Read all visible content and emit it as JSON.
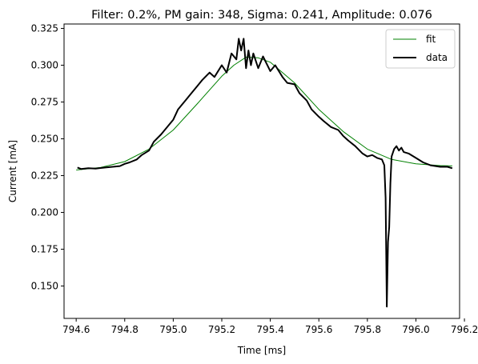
{
  "chart_data": {
    "type": "line",
    "title": "Filter: 0.2%, PM gain: 348, Sigma: 0.241, Amplitude: 0.076",
    "xlabel": "Time [ms]",
    "ylabel": "Current [mA]",
    "xlim": [
      794.55,
      796.18
    ],
    "ylim": [
      0.128,
      0.328
    ],
    "xticks": [
      794.6,
      794.8,
      795.0,
      795.2,
      795.4,
      795.6,
      795.8,
      796.0,
      796.2
    ],
    "xtick_labels": [
      "794.6",
      "794.8",
      "795.0",
      "795.2",
      "795.4",
      "795.6",
      "795.8",
      "796.0",
      "796.2"
    ],
    "yticks": [
      0.15,
      0.175,
      0.2,
      0.225,
      0.25,
      0.275,
      0.3,
      0.325
    ],
    "ytick_labels": [
      "0.150",
      "0.175",
      "0.200",
      "0.225",
      "0.250",
      "0.275",
      "0.300",
      "0.325"
    ],
    "grid": false,
    "legend_position": "top-right",
    "series": [
      {
        "name": "fit",
        "color": "#008000",
        "style": "thin-line",
        "x": [
          794.6,
          794.7,
          794.8,
          794.9,
          795.0,
          795.1,
          795.2,
          795.25,
          795.3,
          795.35,
          795.4,
          795.5,
          795.6,
          795.7,
          795.8,
          795.9,
          796.0,
          796.1,
          796.15
        ],
        "y": [
          0.2288,
          0.2305,
          0.2345,
          0.243,
          0.256,
          0.274,
          0.2925,
          0.3,
          0.3055,
          0.305,
          0.302,
          0.288,
          0.27,
          0.255,
          0.243,
          0.236,
          0.233,
          0.2318,
          0.2316
        ]
      },
      {
        "name": "data",
        "color": "#000000",
        "style": "thick-line",
        "x": [
          794.605,
          794.62,
          794.65,
          794.68,
          794.7,
          794.72,
          794.75,
          794.78,
          794.8,
          794.82,
          794.85,
          794.87,
          794.9,
          794.92,
          794.95,
          794.98,
          795.0,
          795.02,
          795.05,
          795.07,
          795.1,
          795.12,
          795.15,
          795.17,
          795.2,
          795.22,
          795.24,
          795.26,
          795.27,
          795.28,
          795.29,
          795.3,
          795.31,
          795.32,
          795.33,
          795.35,
          795.37,
          795.4,
          795.42,
          795.45,
          795.47,
          795.5,
          795.52,
          795.55,
          795.57,
          795.6,
          795.62,
          795.65,
          795.68,
          795.7,
          795.72,
          795.75,
          795.78,
          795.8,
          795.82,
          795.84,
          795.86,
          795.87,
          795.875,
          795.88,
          795.885,
          795.89,
          795.895,
          795.9,
          795.91,
          795.92,
          795.93,
          795.94,
          795.95,
          795.97,
          796.0,
          796.03,
          796.06,
          796.1,
          796.13,
          796.15
        ],
        "y": [
          0.2305,
          0.2295,
          0.23,
          0.2298,
          0.2302,
          0.2305,
          0.231,
          0.2315,
          0.233,
          0.234,
          0.236,
          0.239,
          0.242,
          0.248,
          0.253,
          0.259,
          0.263,
          0.27,
          0.276,
          0.28,
          0.286,
          0.29,
          0.295,
          0.292,
          0.3,
          0.295,
          0.308,
          0.304,
          0.318,
          0.31,
          0.318,
          0.298,
          0.31,
          0.3,
          0.308,
          0.298,
          0.306,
          0.296,
          0.3,
          0.292,
          0.288,
          0.287,
          0.281,
          0.276,
          0.27,
          0.265,
          0.262,
          0.258,
          0.256,
          0.252,
          0.249,
          0.245,
          0.24,
          0.238,
          0.239,
          0.237,
          0.236,
          0.232,
          0.21,
          0.136,
          0.18,
          0.19,
          0.22,
          0.238,
          0.243,
          0.245,
          0.242,
          0.244,
          0.241,
          0.24,
          0.237,
          0.234,
          0.232,
          0.231,
          0.231,
          0.23
        ]
      }
    ]
  }
}
